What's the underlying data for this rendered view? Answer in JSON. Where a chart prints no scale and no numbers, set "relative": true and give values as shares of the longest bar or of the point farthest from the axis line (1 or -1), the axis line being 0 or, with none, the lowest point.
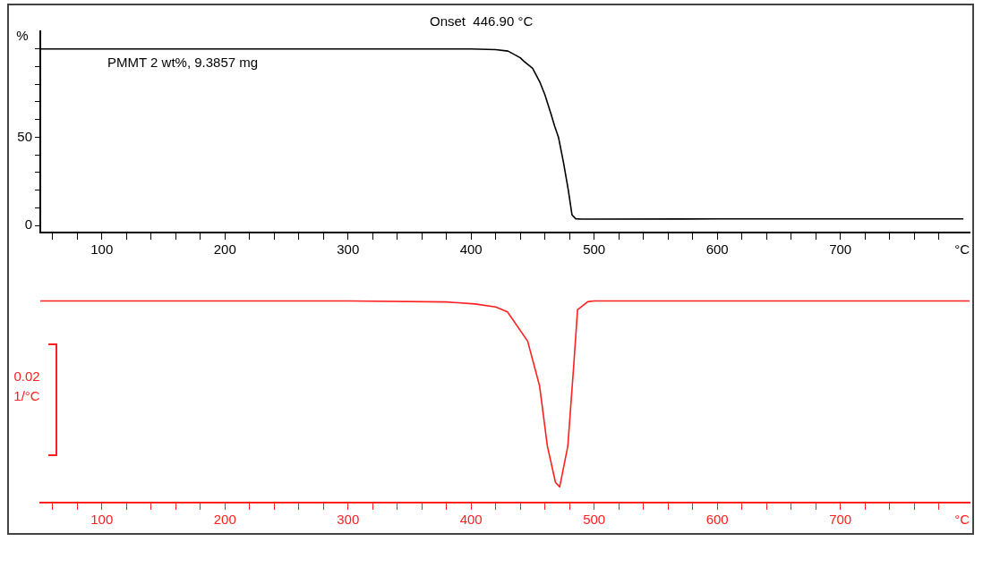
{
  "chart_data": [
    {
      "type": "line",
      "ylabel": "%",
      "xlabel": "°C",
      "x": [
        50,
        100,
        200,
        300,
        400,
        420,
        430,
        440,
        443,
        450,
        456,
        460,
        465,
        468,
        471,
        475,
        479,
        482,
        485,
        490,
        600,
        700,
        800
      ],
      "series": [
        {
          "color": "#000000",
          "values": [
            100,
            100,
            100,
            100,
            100,
            99.6,
            98.8,
            95,
            93,
            89,
            81,
            74,
            63,
            56,
            50,
            36,
            20,
            6,
            3.8,
            3.6,
            3.7,
            3.7,
            3.7
          ]
        }
      ],
      "xlim": [
        50,
        805
      ],
      "ylim": [
        -4,
        110
      ],
      "xticks": [
        {
          "value": 60,
          "label": null
        },
        {
          "value": 80,
          "label": null
        },
        100,
        {
          "value": 120,
          "label": null
        },
        {
          "value": 140,
          "label": null
        },
        {
          "value": 160,
          "label": null
        },
        {
          "value": 180,
          "label": null
        },
        200,
        {
          "value": 220,
          "label": null
        },
        {
          "value": 240,
          "label": null
        },
        {
          "value": 260,
          "label": null
        },
        {
          "value": 280,
          "label": null
        },
        300,
        {
          "value": 320,
          "label": null
        },
        {
          "value": 340,
          "label": null
        },
        {
          "value": 360,
          "label": null
        },
        {
          "value": 380,
          "label": null
        },
        400,
        {
          "value": 420,
          "label": null
        },
        {
          "value": 440,
          "label": null
        },
        {
          "value": 460,
          "label": null
        },
        {
          "value": 480,
          "label": null
        },
        500,
        {
          "value": 520,
          "label": null
        },
        {
          "value": 540,
          "label": null
        },
        {
          "value": 560,
          "label": null
        },
        {
          "value": 580,
          "label": null
        },
        600,
        {
          "value": 620,
          "label": null
        },
        {
          "value": 640,
          "label": null
        },
        {
          "value": 660,
          "label": null
        },
        {
          "value": 680,
          "label": null
        },
        700,
        {
          "value": 720,
          "label": null
        },
        {
          "value": 740,
          "label": null
        },
        {
          "value": 760,
          "label": null
        },
        {
          "value": 780,
          "label": null
        }
      ],
      "yticks": [
        0,
        {
          "value": 10,
          "label": null
        },
        {
          "value": 20,
          "label": null
        },
        {
          "value": 30,
          "label": null
        },
        {
          "value": 40,
          "label": null
        },
        50,
        {
          "value": 60,
          "label": null
        },
        {
          "value": 70,
          "label": null
        },
        {
          "value": 80,
          "label": null
        },
        {
          "value": 90,
          "label": null
        },
        {
          "value": 100,
          "label": null
        }
      ],
      "annotations": [
        "Onset  446.90 °C",
        "PMMT 2 wt%, 9.3857 mg"
      ]
    },
    {
      "type": "line",
      "relative": true,
      "xlabel": "°C",
      "ylabel": "1/°C",
      "x": [
        50,
        100,
        200,
        300,
        380,
        403.2,
        420,
        429.6,
        446,
        455.6,
        462,
        468.6,
        472,
        478.6,
        483.4,
        486.5,
        494.8,
        500,
        600,
        700,
        805
      ],
      "series": [
        {
          "color": "#ff2020",
          "values": [
            1,
            1,
            1,
            1,
            0.995,
            0.985,
            0.97,
            0.946,
            0.8,
            0.58,
            0.28,
            0.1,
            0.078,
            0.28,
            0.68,
            0.956,
            0.996,
            1,
            1,
            1,
            1
          ]
        }
      ],
      "xlim": [
        50,
        805
      ],
      "xticks": [
        {
          "value": 60,
          "label": null
        },
        {
          "value": 80,
          "label": null
        },
        100,
        {
          "value": 120,
          "label": null
        },
        {
          "value": 140,
          "label": null
        },
        {
          "value": 160,
          "label": null
        },
        {
          "value": 180,
          "label": null
        },
        200,
        {
          "value": 220,
          "label": null
        },
        {
          "value": 240,
          "label": null
        },
        {
          "value": 260,
          "label": null
        },
        {
          "value": 280,
          "label": null
        },
        300,
        {
          "value": 320,
          "label": null
        },
        {
          "value": 340,
          "label": null
        },
        {
          "value": 360,
          "label": null
        },
        {
          "value": 380,
          "label": null
        },
        400,
        {
          "value": 420,
          "label": null
        },
        {
          "value": 440,
          "label": null
        },
        {
          "value": 460,
          "label": null
        },
        {
          "value": 480,
          "label": null
        },
        500,
        {
          "value": 520,
          "label": null
        },
        {
          "value": 540,
          "label": null
        },
        {
          "value": 560,
          "label": null
        },
        {
          "value": 580,
          "label": null
        },
        600,
        {
          "value": 620,
          "label": null
        },
        {
          "value": 640,
          "label": null
        },
        {
          "value": 660,
          "label": null
        },
        {
          "value": 680,
          "label": null
        },
        700,
        {
          "value": 720,
          "label": null
        },
        {
          "value": 740,
          "label": null
        },
        {
          "value": 760,
          "label": null
        },
        {
          "value": 780,
          "label": null
        }
      ],
      "annotations": [
        "0.02"
      ]
    }
  ]
}
